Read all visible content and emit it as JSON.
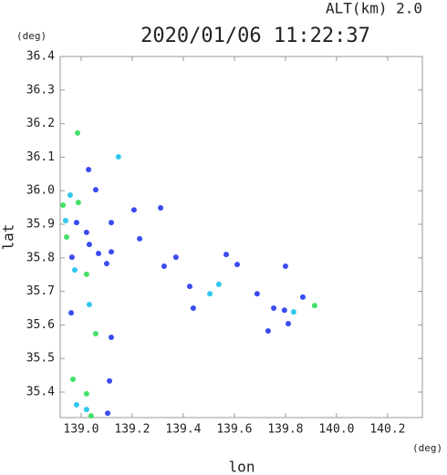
{
  "chart_data": {
    "type": "scatter",
    "title": "2020/01/06 11:22:37",
    "subtitle": "ALT(km) 2.0",
    "x_label": "lon",
    "y_label": "lat",
    "x_unit": "(deg)",
    "y_unit": "(deg)",
    "xlim": [
      138.918,
      140.336
    ],
    "ylim": [
      35.324,
      36.4
    ],
    "xticks": [
      {
        "value": 139,
        "label": "139.0"
      },
      139.2,
      139.4,
      139.6,
      139.8,
      {
        "value": 140,
        "label": "140.0"
      },
      140.2
    ],
    "yticks": [
      35.4,
      35.5,
      35.6,
      35.7,
      35.8,
      35.9,
      {
        "value": 36,
        "label": "36.0"
      },
      36.1,
      36.2,
      36.3,
      36.4
    ],
    "x": [
      138.986,
      139.029,
      139.146,
      138.929,
      138.989,
      138.957,
      139.057,
      138.982,
      138.943,
      139.021,
      138.939,
      139.032,
      139.068,
      139.118,
      138.964,
      138.975,
      139.021,
      139.1,
      139.311,
      139.207,
      139.118,
      139.229,
      139.371,
      139.325,
      139.568,
      139.611,
      139.8,
      139.425,
      139.504,
      139.539,
      139.439,
      139.032,
      138.961,
      139.057,
      139.118,
      139.689,
      139.754,
      139.796,
      139.832,
      139.868,
      139.914,
      139.811,
      139.732,
      138.968,
      139.021,
      139.111,
      139.021,
      139.039,
      139.104,
      138.982
    ],
    "values": [
      36.172,
      36.063,
      36.101,
      35.957,
      35.965,
      35.987,
      36.003,
      35.905,
      35.862,
      35.876,
      35.911,
      35.84,
      35.813,
      35.818,
      35.802,
      35.764,
      35.751,
      35.783,
      35.949,
      35.943,
      35.905,
      35.857,
      35.802,
      35.775,
      35.81,
      35.78,
      35.775,
      35.715,
      35.693,
      35.721,
      35.65,
      35.661,
      35.636,
      35.574,
      35.563,
      35.693,
      35.65,
      35.644,
      35.639,
      35.683,
      35.658,
      35.604,
      35.582,
      35.438,
      35.395,
      35.433,
      35.348,
      35.329,
      35.337,
      35.362
    ],
    "colors": [
      "#44e06a",
      "#3a4cf0",
      "#30c8f0",
      "#44e06a",
      "#44e06a",
      "#30c8f0",
      "#3a4cf0",
      "#3a4cf0",
      "#44e06a",
      "#3a4cf0",
      "#30c8f0",
      "#3a4cf0",
      "#3a4cf0",
      "#3a4cf0",
      "#3a4cf0",
      "#30c8f0",
      "#44e06a",
      "#3a4cf0",
      "#3a4cf0",
      "#3a4cf0",
      "#3a4cf0",
      "#3a4cf0",
      "#3a4cf0",
      "#3a4cf0",
      "#3a4cf0",
      "#3a4cf0",
      "#3a4cf0",
      "#3a4cf0",
      "#30c8f0",
      "#30c8f0",
      "#3a4cf0",
      "#30c8f0",
      "#3a4cf0",
      "#44e06a",
      "#3a4cf0",
      "#3a4cf0",
      "#3a4cf0",
      "#3a4cf0",
      "#30c8f0",
      "#3a4cf0",
      "#44e06a",
      "#3a4cf0",
      "#3a4cf0",
      "#44e06a",
      "#44e06a",
      "#3a4cf0",
      "#30c8f0",
      "#44e06a",
      "#3a4cf0",
      "#30c8f0"
    ]
  }
}
